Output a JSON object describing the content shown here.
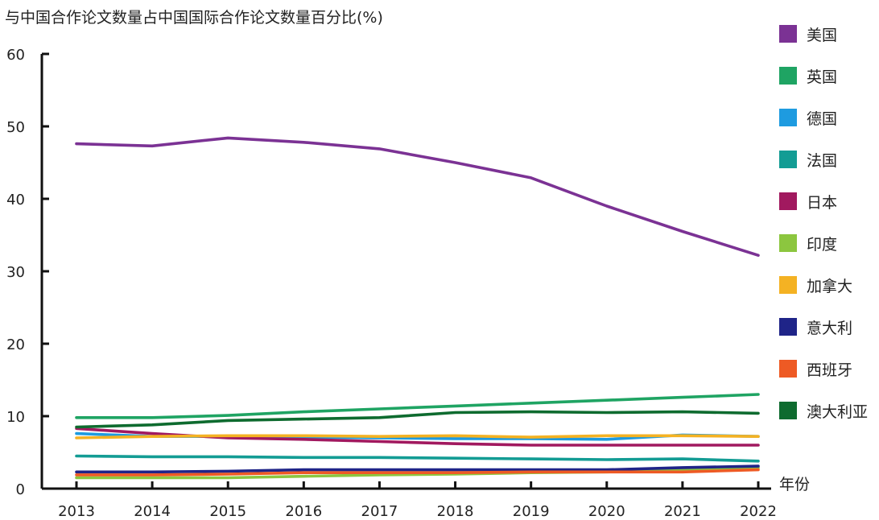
{
  "chart_data": {
    "type": "line",
    "title": "与中国合作论文数量占中国国际合作论文数量百分比(%)",
    "xlabel": "年份",
    "ylabel": "",
    "x": [
      "2013",
      "2014",
      "2015",
      "2016",
      "2017",
      "2018",
      "2019",
      "2020",
      "2021",
      "2022"
    ],
    "ylim": [
      0,
      60
    ],
    "yticks": [
      "0",
      "10",
      "20",
      "30",
      "40",
      "50",
      "60"
    ],
    "grid": false,
    "legend_position": "right",
    "series": [
      {
        "name": "美国",
        "color": "#7B3294",
        "values": [
          47.6,
          47.3,
          48.4,
          47.8,
          46.9,
          45.0,
          42.9,
          39.0,
          35.5,
          32.2
        ]
      },
      {
        "name": "英国",
        "color": "#1FA463",
        "values": [
          9.8,
          9.8,
          10.1,
          10.6,
          11.0,
          11.4,
          11.8,
          12.2,
          12.6,
          13.0
        ]
      },
      {
        "name": "德国",
        "color": "#1E9BE0",
        "values": [
          7.6,
          7.2,
          7.2,
          7.1,
          7.0,
          6.9,
          6.9,
          6.8,
          7.4,
          7.2
        ]
      },
      {
        "name": "法国",
        "color": "#139C94",
        "values": [
          4.5,
          4.4,
          4.4,
          4.3,
          4.3,
          4.2,
          4.1,
          4.0,
          4.1,
          3.8
        ]
      },
      {
        "name": "日本",
        "color": "#A1195F",
        "values": [
          8.3,
          7.6,
          7.0,
          6.8,
          6.5,
          6.2,
          6.0,
          6.0,
          6.0,
          6.0
        ]
      },
      {
        "name": "印度",
        "color": "#8CC63F",
        "values": [
          1.5,
          1.5,
          1.5,
          1.7,
          1.9,
          2.0,
          2.2,
          2.3,
          2.6,
          2.9
        ]
      },
      {
        "name": "加拿大",
        "color": "#F4B223",
        "values": [
          7.0,
          7.2,
          7.3,
          7.3,
          7.2,
          7.3,
          7.1,
          7.3,
          7.3,
          7.2
        ]
      },
      {
        "name": "意大利",
        "color": "#1F2488",
        "values": [
          2.3,
          2.3,
          2.4,
          2.6,
          2.6,
          2.6,
          2.6,
          2.6,
          2.9,
          3.1
        ]
      },
      {
        "name": "西班牙",
        "color": "#EE5A24",
        "values": [
          1.9,
          1.9,
          2.0,
          2.2,
          2.2,
          2.2,
          2.3,
          2.3,
          2.3,
          2.6
        ]
      },
      {
        "name": "澳大利亚",
        "color": "#0E6B2F",
        "values": [
          8.5,
          8.8,
          9.4,
          9.6,
          9.8,
          10.5,
          10.6,
          10.5,
          10.6,
          10.4
        ]
      }
    ]
  }
}
